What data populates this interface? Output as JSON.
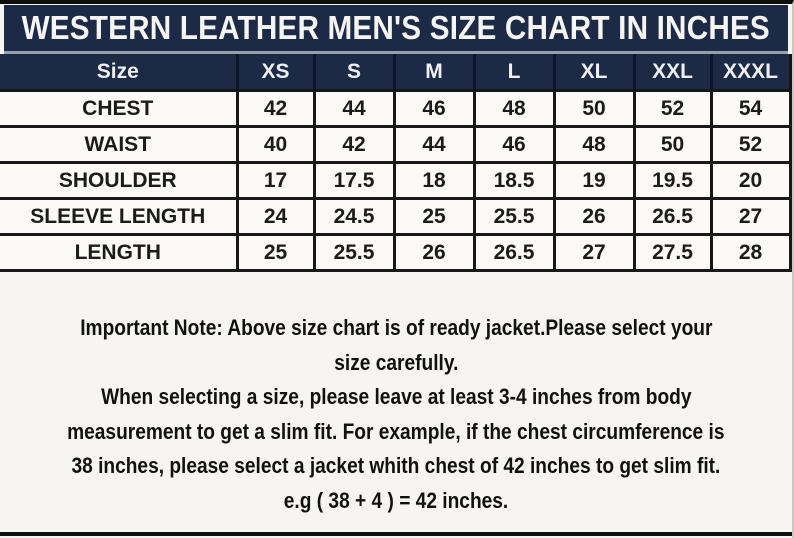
{
  "title": "WESTERN LEATHER MEN'S SIZE CHART IN INCHES",
  "size_chart": {
    "columns": [
      "Size",
      "XS",
      "S",
      "M",
      "L",
      "XL",
      "XXL",
      "XXXL"
    ],
    "rows": [
      {
        "label": "CHEST",
        "values": [
          "42",
          "44",
          "46",
          "48",
          "50",
          "52",
          "54"
        ]
      },
      {
        "label": "WAIST",
        "values": [
          "40",
          "42",
          "44",
          "46",
          "48",
          "50",
          "52"
        ]
      },
      {
        "label": "SHOULDER",
        "values": [
          "17",
          "17.5",
          "18",
          "18.5",
          "19",
          "19.5",
          "20"
        ]
      },
      {
        "label": "SLEEVE LENGTH",
        "values": [
          "24",
          "24.5",
          "25",
          "25.5",
          "26",
          "26.5",
          "27"
        ]
      },
      {
        "label": "LENGTH",
        "values": [
          "25",
          "25.5",
          "26",
          "26.5",
          "27",
          "27.5",
          "28"
        ]
      }
    ]
  },
  "note": {
    "lines": [
      "Important Note: Above size chart is of ready jacket.Please select your",
      "size carefully.",
      "When selecting a size, please leave at least 3-4 inches from body",
      "measurement to get a slim fit. For example, if the chest circumference is",
      "38 inches, please select a jacket whith chest of 42 inches to get slim fit.",
      "e.g ( 38 + 4 ) = 42 inches."
    ]
  },
  "colors": {
    "navy": "#1c2a45",
    "navy_divider": "#0c1628",
    "row_bg": "#fbfaf7",
    "page_bg": "#f6f5f1",
    "title_text": "#f5f5f3",
    "header_text": "#eef0f2",
    "body_text": "#1b1b1b",
    "separator": "#97a0ae"
  }
}
